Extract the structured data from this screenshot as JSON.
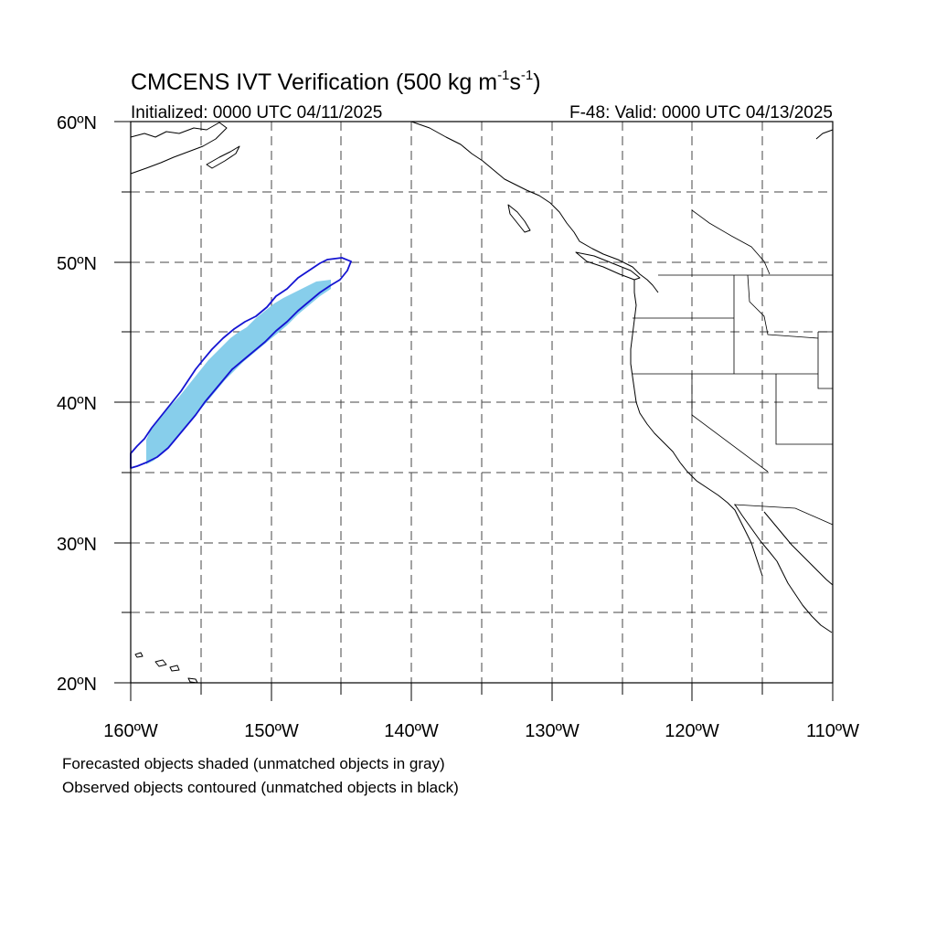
{
  "title": {
    "main": "CMCENS IVT Verification (500 kg m",
    "sup1": "-1",
    "mid": "s",
    "sup2": "-1",
    "end": ")"
  },
  "subtitle_left": "Initialized: 0000 UTC 04/11/2025",
  "subtitle_right": "F-48: Valid: 0000 UTC 04/13/2025",
  "map": {
    "lon_range": [
      -160,
      -110
    ],
    "lat_range": [
      20,
      60
    ],
    "lat_labels": [
      "20ºN",
      "30ºN",
      "40ºN",
      "50ºN",
      "60ºN"
    ],
    "lon_labels": [
      "160ºW",
      "150ºW",
      "140ºW",
      "130ºW",
      "120ºW",
      "110ºW"
    ],
    "grid": true,
    "grid_spacing_deg": 5
  },
  "objects": {
    "forecast_color": "#87ceeb",
    "observed_color": "#1414d2"
  },
  "legend": {
    "line1": "Forecasted objects shaded (unmatched objects in gray)",
    "line2": "Observed objects contoured (unmatched objects in black)"
  }
}
